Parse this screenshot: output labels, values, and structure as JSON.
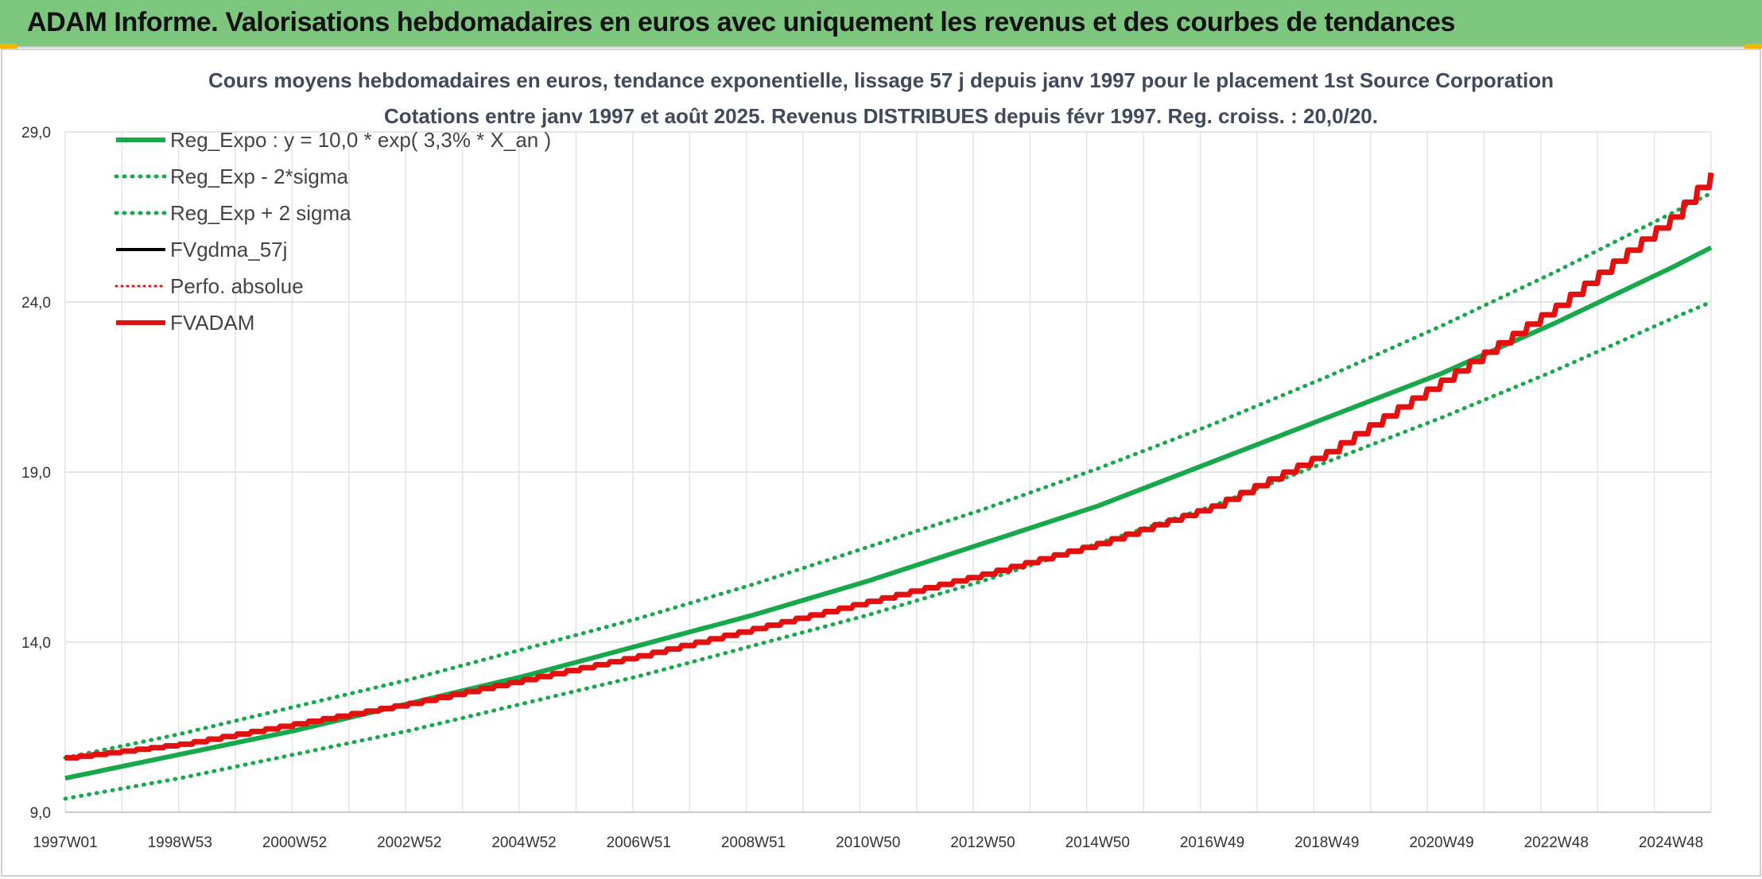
{
  "banner": {
    "title": "ADAM Informe. Valorisations hebdomadaires en euros avec uniquement les revenus et des courbes de tendances"
  },
  "colors": {
    "banner": "#7dc67e",
    "accent": "#f2b705",
    "reg": "#17a84b",
    "fvadam": "#e31010",
    "fvgdma": "#000000"
  },
  "chart_data": {
    "type": "line",
    "title": "Cours moyens hebdomadaires en euros, tendance exponentielle, lissage 57 j depuis janv 1997 pour le placement 1st Source Corporation",
    "subtitle": "Cotations entre janv 1997 et août 2025. Revenus DISTRIBUES depuis févr 1997. Reg. croiss. : 20,0/20.",
    "xlabel": "",
    "ylabel": "",
    "ylim": [
      9.0,
      29.0
    ],
    "y_ticks": [
      "9,0",
      "14,0",
      "19,0",
      "24,0",
      "29,0"
    ],
    "x_tick_labels": [
      "1997W01",
      "1998W53",
      "2000W52",
      "2002W52",
      "2004W52",
      "2006W51",
      "2008W51",
      "2010W50",
      "2012W50",
      "2014W50",
      "2016W49",
      "2018W49",
      "2020W49",
      "2022W48",
      "2024W48"
    ],
    "x": [
      1997.0,
      1999.0,
      2001.0,
      2003.0,
      2005.0,
      2007.0,
      2009.0,
      2011.0,
      2013.0,
      2015.0,
      2017.0,
      2019.0,
      2021.0,
      2023.0,
      2025.0,
      2025.7
    ],
    "series": [
      {
        "name": "Reg_Expo : y = 10,0 * exp( 3,3% *  X_an )",
        "style": "solid",
        "color": "#17a84b",
        "values": [
          10.0,
          10.7,
          11.4,
          12.2,
          13.0,
          13.9,
          14.8,
          15.8,
          16.9,
          18.0,
          19.3,
          20.6,
          21.9,
          23.4,
          25.0,
          25.6
        ]
      },
      {
        "name": "Reg_Exp - 2*sigma",
        "style": "dotted",
        "color": "#17a84b",
        "values": [
          9.4,
          10.0,
          10.7,
          11.4,
          12.2,
          13.0,
          13.9,
          14.8,
          15.8,
          16.9,
          18.0,
          19.3,
          20.6,
          22.0,
          23.5,
          24.0
        ]
      },
      {
        "name": "Reg_Exp + 2 sigma",
        "style": "dotted",
        "color": "#17a84b",
        "values": [
          10.6,
          11.3,
          12.1,
          12.9,
          13.8,
          14.7,
          15.7,
          16.8,
          17.9,
          19.1,
          20.4,
          21.8,
          23.3,
          24.9,
          26.6,
          27.2
        ]
      },
      {
        "name": "FVgdma_57j",
        "style": "solid",
        "color": "#000000",
        "values": [
          10.6,
          11.0,
          11.6,
          12.2,
          12.9,
          13.6,
          14.4,
          15.2,
          16.0,
          16.9,
          18.0,
          19.6,
          21.7,
          23.9,
          26.5,
          27.8
        ]
      },
      {
        "name": "Perfo. absolue",
        "style": "dotted",
        "color": "#e31010",
        "values": [
          10.6,
          11.0,
          11.6,
          12.2,
          12.9,
          13.6,
          14.4,
          15.2,
          16.0,
          16.9,
          18.0,
          19.6,
          21.7,
          23.9,
          26.5,
          27.8
        ]
      },
      {
        "name": "FVADAM",
        "style": "solid",
        "color": "#e31010",
        "values": [
          10.6,
          11.0,
          11.6,
          12.2,
          12.9,
          13.6,
          14.4,
          15.2,
          16.0,
          16.9,
          18.0,
          19.6,
          21.7,
          23.9,
          26.5,
          27.8
        ]
      }
    ],
    "grid": true,
    "legend": "top-left"
  }
}
